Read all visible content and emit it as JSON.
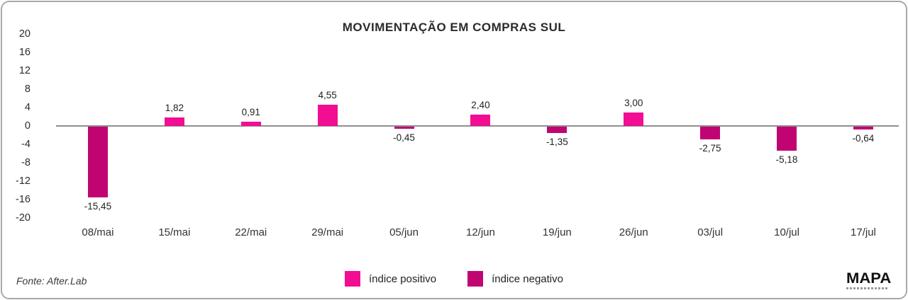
{
  "card": {
    "title": "MOVIMENTAÇÃO EM COMPRAS SUL",
    "source": "Fonte: After.Lab",
    "logo_text": "MAPA"
  },
  "legend": [
    {
      "label": "índice positivo",
      "color": "#F20D93"
    },
    {
      "label": "índice negativo",
      "color": "#C00573"
    }
  ],
  "chart_data": {
    "type": "bar",
    "title": "MOVIMENTAÇÃO EM COMPRAS SUL",
    "categories": [
      "08/mai",
      "15/mai",
      "22/mai",
      "29/mai",
      "05/jun",
      "12/jun",
      "19/jun",
      "26/jun",
      "03/jul",
      "10/jul",
      "17/jul"
    ],
    "values": [
      -15.45,
      1.82,
      0.91,
      4.55,
      -0.45,
      2.4,
      -1.35,
      3.0,
      -2.75,
      -5.18,
      -0.64
    ],
    "value_labels": [
      "-15,45",
      "1,82",
      "0,91",
      "4,55",
      "-0,45",
      "2,40",
      "-1,35",
      "3,00",
      "-2,75",
      "-5,18",
      "-0,64"
    ],
    "y_ticks": [
      20,
      16,
      12,
      8,
      4,
      0,
      -4,
      -8,
      -12,
      -16,
      -20
    ],
    "ylim": [
      -20,
      20
    ],
    "xlabel": "",
    "ylabel": "",
    "grid": false,
    "legend_position": "bottom-center",
    "colors": {
      "positive": "#F20D93",
      "negative": "#C00573",
      "zero_line": "#8f8f8f"
    }
  }
}
